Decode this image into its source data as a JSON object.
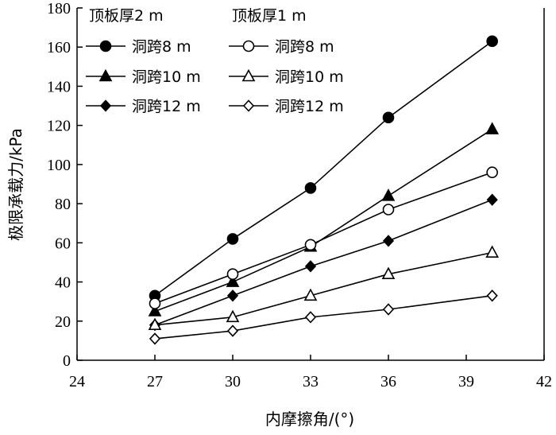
{
  "chart_data": {
    "type": "line",
    "title": "",
    "xlabel": "内摩擦角/(°)",
    "ylabel": "极限承载力/kPa",
    "xlim": [
      24,
      42
    ],
    "ylim": [
      0,
      180
    ],
    "x_ticks": [
      24,
      27,
      30,
      33,
      36,
      39,
      42
    ],
    "y_ticks": [
      0,
      20,
      40,
      60,
      80,
      100,
      120,
      140,
      160,
      180
    ],
    "grid": false,
    "legend_position": "top-left",
    "legend_group_titles": [
      "顶板厚2 m",
      "顶板厚1 m"
    ],
    "x": [
      27,
      30,
      33,
      36,
      40
    ],
    "series": [
      {
        "name": "洞跨8 m",
        "group": "顶板厚2 m",
        "marker": "circle",
        "filled": true,
        "values": [
          33,
          62,
          88,
          124,
          163
        ]
      },
      {
        "name": "洞跨10 m",
        "group": "顶板厚2 m",
        "marker": "triangle",
        "filled": true,
        "values": [
          25,
          40,
          58,
          84,
          118
        ]
      },
      {
        "name": "洞跨12 m",
        "group": "顶板厚2 m",
        "marker": "diamond",
        "filled": true,
        "values": [
          18,
          33,
          48,
          61,
          82
        ]
      },
      {
        "name": "洞跨8 m",
        "group": "顶板厚1 m",
        "marker": "circle",
        "filled": false,
        "values": [
          29,
          44,
          59,
          77,
          96
        ]
      },
      {
        "name": "洞跨10 m",
        "group": "顶板厚1 m",
        "marker": "triangle",
        "filled": false,
        "values": [
          18,
          22,
          33,
          44,
          55
        ]
      },
      {
        "name": "洞跨12 m",
        "group": "顶板厚1 m",
        "marker": "diamond",
        "filled": false,
        "values": [
          11,
          15,
          22,
          26,
          33
        ]
      }
    ]
  }
}
